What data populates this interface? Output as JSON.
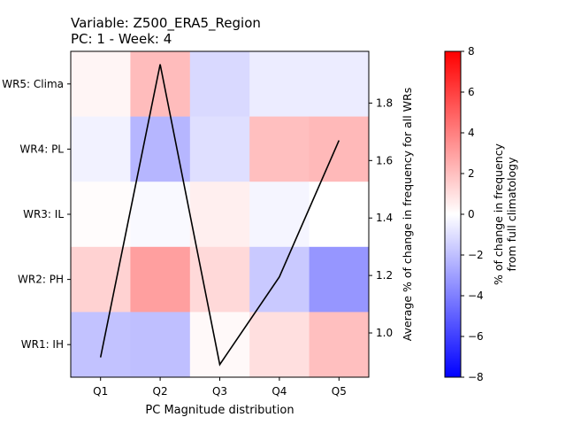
{
  "chart_data": {
    "type": "heatmap",
    "title_lines": [
      "Variable: Z500_ERA5_Region",
      "PC: 1 - Week: 4"
    ],
    "xlabel": "PC Magnitude distribution",
    "x_categories": [
      "Q1",
      "Q2",
      "Q3",
      "Q4",
      "Q5"
    ],
    "y_categories": [
      "WR5: Clima",
      "WR4: PL",
      "WR3: IL",
      "WR2: PH",
      "WR1: IH"
    ],
    "heatmap_values": [
      [
        0.3,
        2.1,
        -1.2,
        -0.6,
        -0.6
      ],
      [
        -0.4,
        -2.3,
        -1.0,
        2.0,
        2.2
      ],
      [
        0.1,
        -0.2,
        0.5,
        -0.3,
        0.0
      ],
      [
        1.4,
        3.0,
        1.2,
        -1.7,
        -3.3
      ],
      [
        -1.9,
        -2.0,
        0.2,
        1.0,
        2.0
      ]
    ],
    "line_series": {
      "x": [
        "Q1",
        "Q2",
        "Q3",
        "Q4",
        "Q5"
      ],
      "y": [
        0.915,
        1.935,
        0.89,
        1.195,
        1.67
      ]
    },
    "y2label": "Average % of change in frequency for all WRs",
    "y2lim": [
      0.846,
      1.98
    ],
    "y2_ticks": [
      "1.0",
      "1.2",
      "1.4",
      "1.6",
      "1.8"
    ],
    "colorbar": {
      "label_lines": [
        "% of change in frequency",
        "from full climatology"
      ],
      "range": [
        -8,
        8
      ],
      "ticks": [
        "8",
        "6",
        "4",
        "2",
        "0",
        "−2",
        "−4",
        "−6",
        "−8"
      ],
      "colormap": "bwr",
      "color_max": "#ff0000",
      "color_mid": "#ffffff",
      "color_min": "#0000ff"
    },
    "line_color": "#000000"
  }
}
